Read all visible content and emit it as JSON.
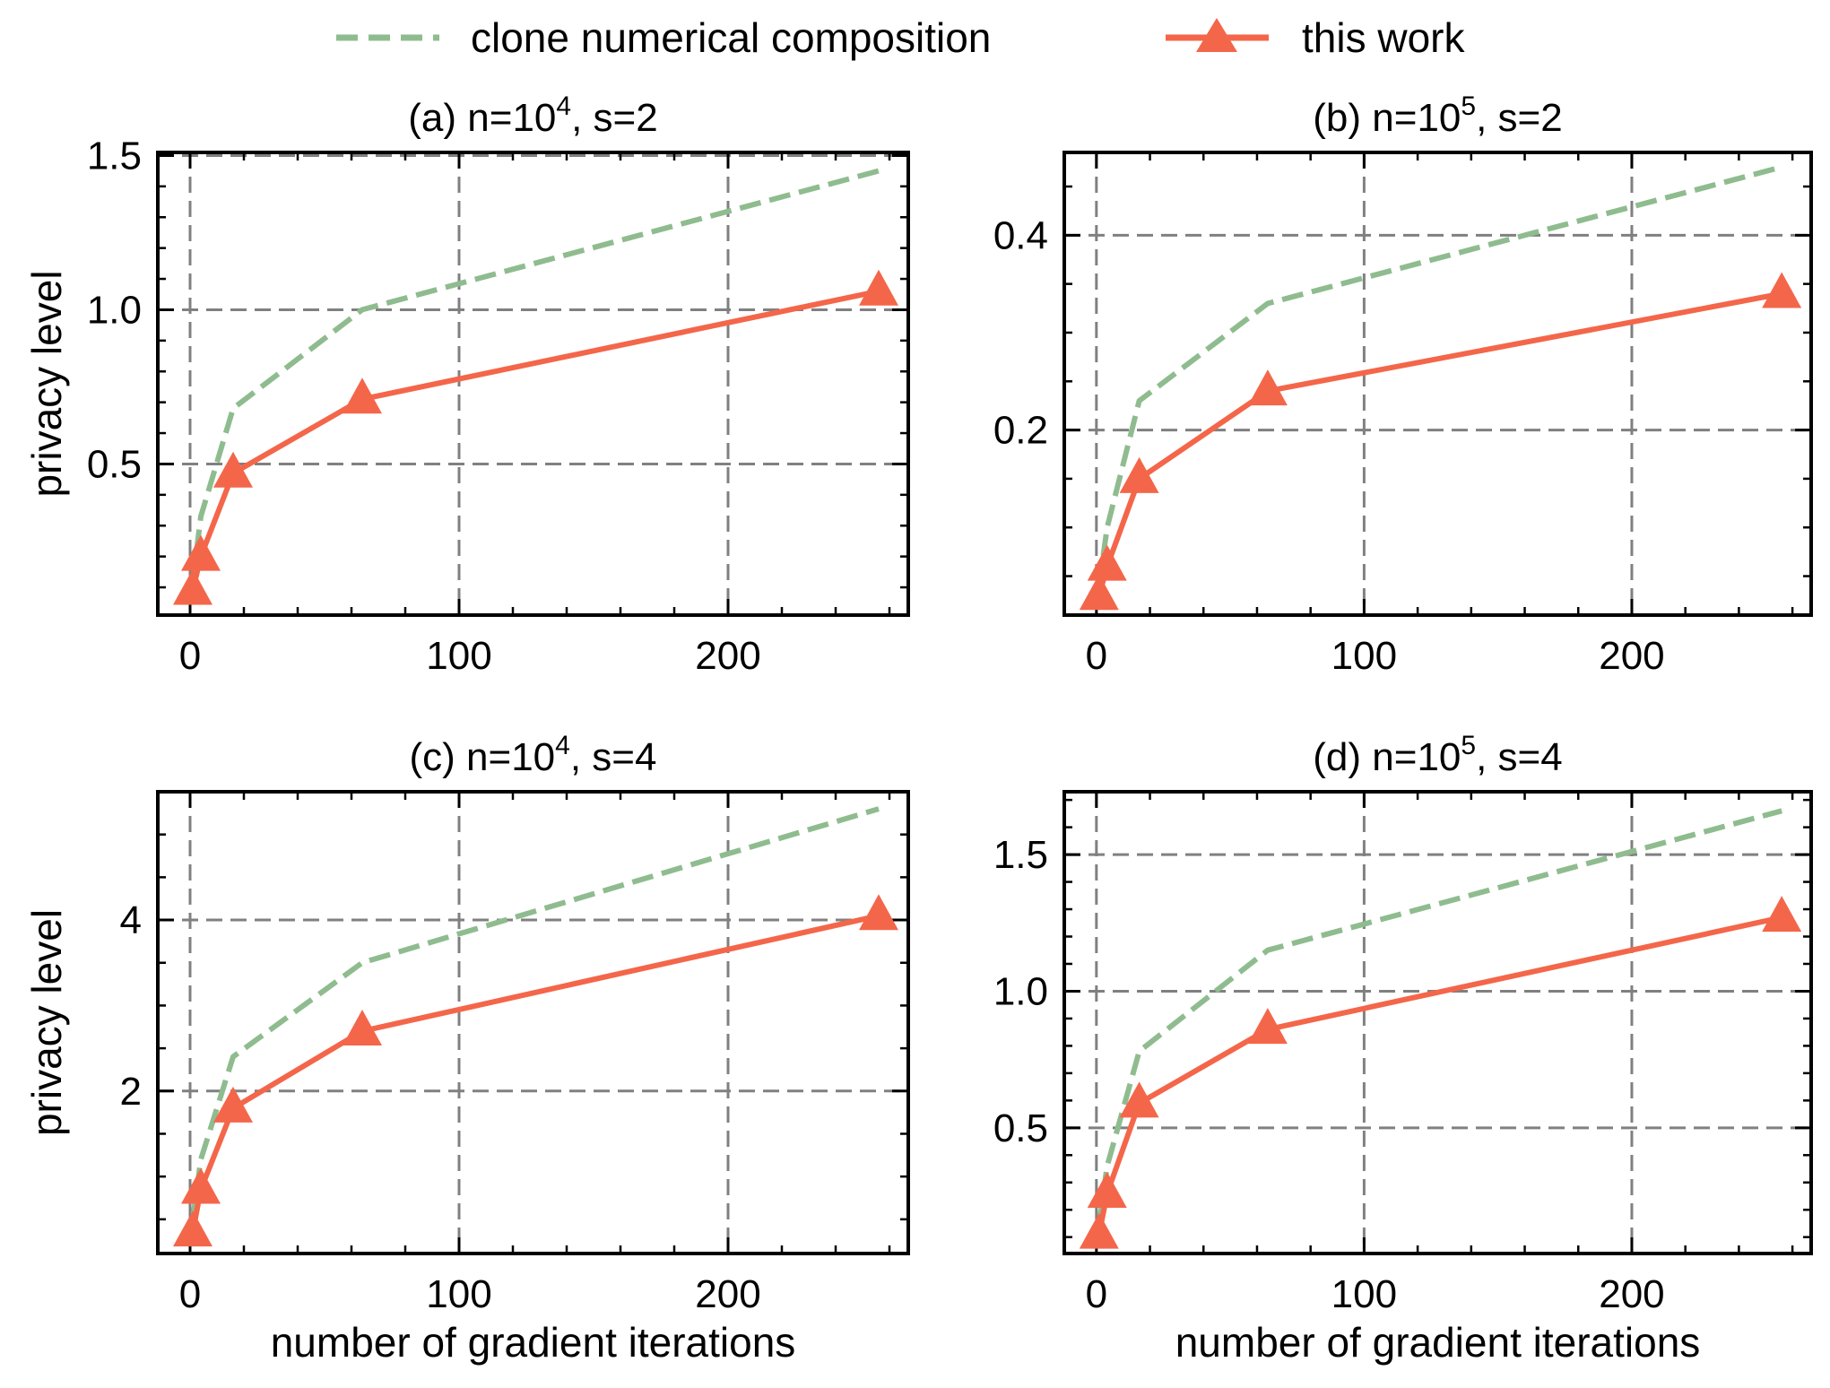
{
  "legend": {
    "clone_label": "clone numerical composition",
    "this_label": "this work"
  },
  "colors": {
    "clone": "#8fbc8f",
    "this_work": "#f4664a",
    "grid": "#808080",
    "axis": "#000000"
  },
  "chart_data": [
    {
      "type": "line",
      "title_prefix": "(a) n=10",
      "title_exp": "4",
      "title_suffix": ", s=2",
      "xlabel": "",
      "ylabel": "privacy level",
      "xlim": [
        -12,
        267
      ],
      "ylim": [
        0.01,
        1.51
      ],
      "xticks": [
        0,
        100,
        200
      ],
      "xtick_labels": [
        "0",
        "100",
        "200"
      ],
      "yticks": [
        0.5,
        1.0,
        1.5
      ],
      "ytick_labels": [
        "0.5",
        "1.0",
        "1.5"
      ],
      "ygrid": [
        0.5,
        1.0,
        1.5
      ],
      "yminor_step": 0.1,
      "series": [
        {
          "name": "clone numerical composition",
          "style": "dashed",
          "x": [
            1,
            4,
            16,
            64,
            256
          ],
          "y": [
            0.12,
            0.33,
            0.68,
            1.0,
            1.45
          ]
        },
        {
          "name": "this work",
          "style": "solid-triangle",
          "x": [
            1,
            4,
            16,
            64,
            256
          ],
          "y": [
            0.09,
            0.2,
            0.47,
            0.71,
            1.06
          ]
        }
      ]
    },
    {
      "type": "line",
      "title_prefix": "(b) n=10",
      "title_exp": "5",
      "title_suffix": ", s=2",
      "xlabel": "",
      "ylabel": "",
      "xlim": [
        -12,
        267
      ],
      "ylim": [
        0.01,
        0.485
      ],
      "xticks": [
        0,
        100,
        200
      ],
      "xtick_labels": [
        "0",
        "100",
        "200"
      ],
      "yticks": [
        0.2,
        0.4
      ],
      "ytick_labels": [
        "0.2",
        "0.4"
      ],
      "ygrid": [
        0.2,
        0.4
      ],
      "yminor_step": 0.05,
      "series": [
        {
          "name": "clone numerical composition",
          "style": "dashed",
          "x": [
            1,
            4,
            16,
            64,
            256
          ],
          "y": [
            0.04,
            0.1,
            0.23,
            0.33,
            0.47
          ]
        },
        {
          "name": "this work",
          "style": "solid-triangle",
          "x": [
            1,
            4,
            16,
            64,
            256
          ],
          "y": [
            0.03,
            0.06,
            0.15,
            0.24,
            0.34
          ]
        }
      ]
    },
    {
      "type": "line",
      "title_prefix": "(c) n=10",
      "title_exp": "4",
      "title_suffix": ", s=4",
      "xlabel": "number of gradient iterations",
      "ylabel": "privacy level",
      "xlim": [
        -12,
        267
      ],
      "ylim": [
        0.1,
        5.5
      ],
      "xticks": [
        0,
        100,
        200
      ],
      "xtick_labels": [
        "0",
        "100",
        "200"
      ],
      "yticks": [
        2,
        4
      ],
      "ytick_labels": [
        "2",
        "4"
      ],
      "ygrid": [
        2,
        4
      ],
      "yminor_step": 0.5,
      "series": [
        {
          "name": "clone numerical composition",
          "style": "dashed",
          "x": [
            1,
            4,
            16,
            64,
            256
          ],
          "y": [
            0.5,
            1.2,
            2.4,
            3.5,
            5.3
          ]
        },
        {
          "name": "this work",
          "style": "solid-triangle",
          "x": [
            1,
            4,
            16,
            64,
            256
          ],
          "y": [
            0.35,
            0.85,
            1.8,
            2.7,
            4.05
          ]
        }
      ]
    },
    {
      "type": "line",
      "title_prefix": "(d) n=10",
      "title_exp": "5",
      "title_suffix": ", s=4",
      "xlabel": "number of gradient iterations",
      "ylabel": "",
      "xlim": [
        -12,
        267
      ],
      "ylim": [
        0.04,
        1.73
      ],
      "xticks": [
        0,
        100,
        200
      ],
      "xtick_labels": [
        "0",
        "100",
        "200"
      ],
      "yticks": [
        0.5,
        1.0,
        1.5
      ],
      "ytick_labels": [
        "0.5",
        "1.0",
        "1.5"
      ],
      "ygrid": [
        0.5,
        1.0,
        1.5
      ],
      "yminor_step": 0.1,
      "series": [
        {
          "name": "clone numerical composition",
          "style": "dashed",
          "x": [
            1,
            4,
            16,
            64,
            256
          ],
          "y": [
            0.15,
            0.36,
            0.78,
            1.15,
            1.66
          ]
        },
        {
          "name": "this work",
          "style": "solid-triangle",
          "x": [
            1,
            4,
            16,
            64,
            256
          ],
          "y": [
            0.11,
            0.26,
            0.59,
            0.86,
            1.27
          ]
        }
      ]
    }
  ]
}
